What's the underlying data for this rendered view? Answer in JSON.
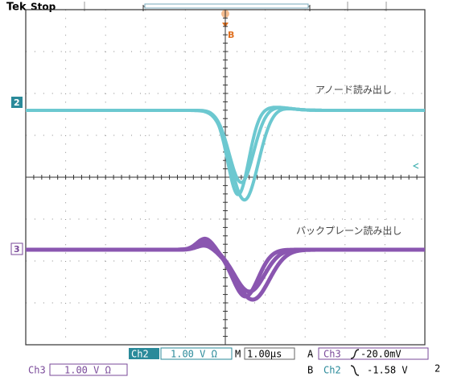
{
  "header": {
    "brand": "Tek",
    "status": "Stop",
    "trigger_marker": "B"
  },
  "channel_markers": [
    "2",
    "3"
  ],
  "annotations": [
    "アノード読み出し",
    "バックプレーン読み出し"
  ],
  "footer": {
    "ch2_label": "Ch2",
    "ch2_scale": "1.00 V Ω",
    "timebase_label": "M",
    "timebase": "1.00µs",
    "trigger_a": {
      "label": "A",
      "source": "Ch3",
      "level": "-20.0mV"
    },
    "ch3_label": "Ch3",
    "ch3_scale": "1.00 V Ω",
    "trigger_b": {
      "label": "B",
      "source": "Ch2",
      "level": "-1.58 V"
    },
    "corner": "2"
  }
}
